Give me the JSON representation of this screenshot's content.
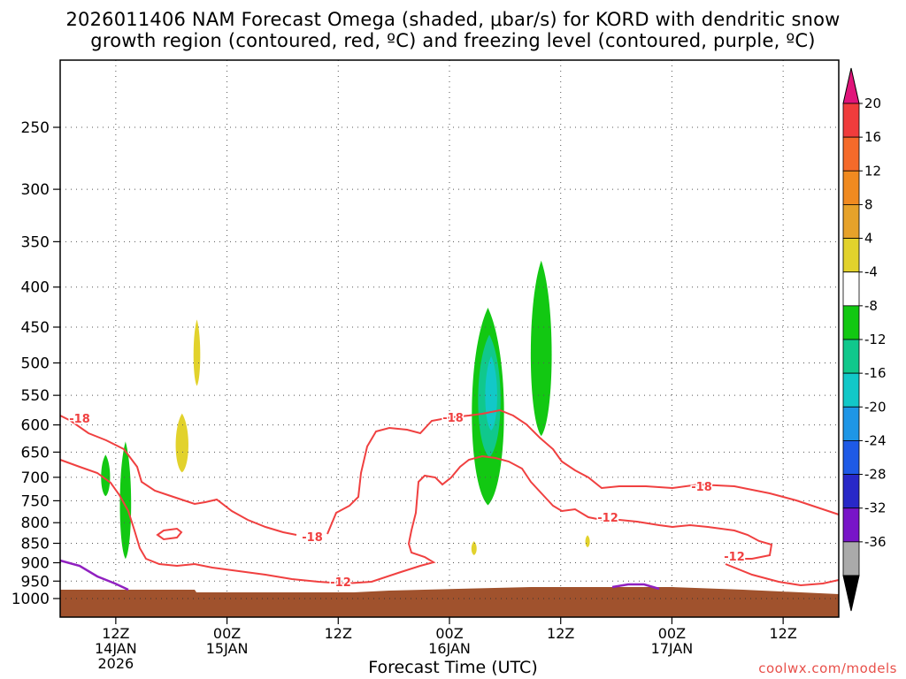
{
  "title_line1": "2026011406 NAM Forecast Omega (shaded, μbar/s) for KORD with dendritic snow",
  "title_line2": "growth region (contoured, red, ºC) and freezing level (contoured, purple, ºC)",
  "credit": "coolwx.com/models",
  "chart_data": {
    "type": "time-height section",
    "title": "2026011406 NAM Forecast Omega (shaded, μbar/s) for KORD with dendritic snow growth region (contoured, red, ºC) and freezing level (contoured, purple, ºC)",
    "xlabel": "Forecast Time (UTC)",
    "ylabel": "",
    "x_range_hours": [
      6,
      90
    ],
    "y_pressure_ticks": [
      250,
      300,
      350,
      400,
      450,
      500,
      550,
      600,
      650,
      700,
      750,
      800,
      850,
      900,
      950,
      1000
    ],
    "x_ticks": [
      {
        "hour": 12,
        "lines": [
          "12Z",
          "14JAN",
          "2026"
        ]
      },
      {
        "hour": 24,
        "lines": [
          "00Z",
          "15JAN"
        ]
      },
      {
        "hour": 36,
        "lines": [
          "12Z"
        ]
      },
      {
        "hour": 48,
        "lines": [
          "00Z",
          "16JAN"
        ]
      },
      {
        "hour": 60,
        "lines": [
          "12Z"
        ]
      },
      {
        "hour": 72,
        "lines": [
          "00Z",
          "17JAN"
        ]
      },
      {
        "hour": 84,
        "lines": [
          "12Z"
        ]
      }
    ],
    "colorbar": {
      "labels": [
        "20",
        "16",
        "12",
        "8",
        "4",
        "-4",
        "-8",
        "-12",
        "-16",
        "-20",
        "-24",
        "-28",
        "-32",
        "-36"
      ],
      "colors": [
        "#f03c3c",
        "#f56a2a",
        "#f08a20",
        "#e6a22a",
        "#e2d22c",
        "#ffffff",
        "#12c812",
        "#10c88c",
        "#12c8c8",
        "#1e96e6",
        "#1e5ae6",
        "#2828c8",
        "#7814c8",
        "#a014c8",
        "#aaaaaa"
      ],
      "top_arrow_color": "#e0147a",
      "bottom_arrow_color": "#000000",
      "units": "μbar/s"
    },
    "contour_labels": {
      "dgz": [
        "-18",
        "-18",
        "-18",
        "-18",
        "-12",
        "-12",
        "-12"
      ]
    },
    "features": [
      {
        "kind": "omega",
        "band": "4 to 8",
        "hours": [
          20.3,
          21.2
        ],
        "pressure": [
          440,
          535
        ]
      },
      {
        "kind": "omega",
        "band": "4 to 8",
        "hours": [
          18.3,
          20.0
        ],
        "pressure": [
          580,
          690
        ]
      },
      {
        "kind": "omega",
        "band": "-4 to -8",
        "hours": [
          10.3,
          11.5
        ],
        "pressure": [
          655,
          740
        ]
      },
      {
        "kind": "omega",
        "band": "-4 to -8",
        "hours": [
          12.3,
          13.8
        ],
        "pressure": [
          630,
          890
        ]
      },
      {
        "kind": "omega",
        "band": "-4 to -8",
        "hours": [
          50.0,
          54.3
        ],
        "pressure": [
          425,
          760
        ]
      },
      {
        "kind": "omega",
        "band": "-8 to -12",
        "hours": [
          50.8,
          53.8
        ],
        "pressure": [
          460,
          660
        ]
      },
      {
        "kind": "omega",
        "band": "-12 to -16",
        "hours": [
          51.7,
          53.3
        ],
        "pressure": [
          490,
          610
        ]
      },
      {
        "kind": "omega",
        "band": "-4 to -8",
        "hours": [
          56.5,
          59.3
        ],
        "pressure": [
          370,
          620
        ]
      },
      {
        "kind": "omega",
        "band": "4 to 8",
        "hours": [
          50.3,
          51.0
        ],
        "pressure": [
          845,
          880
        ]
      },
      {
        "kind": "omega",
        "band": "4 to 8",
        "hours": [
          62.6,
          63.2
        ],
        "pressure": [
          830,
          860
        ]
      }
    ]
  }
}
